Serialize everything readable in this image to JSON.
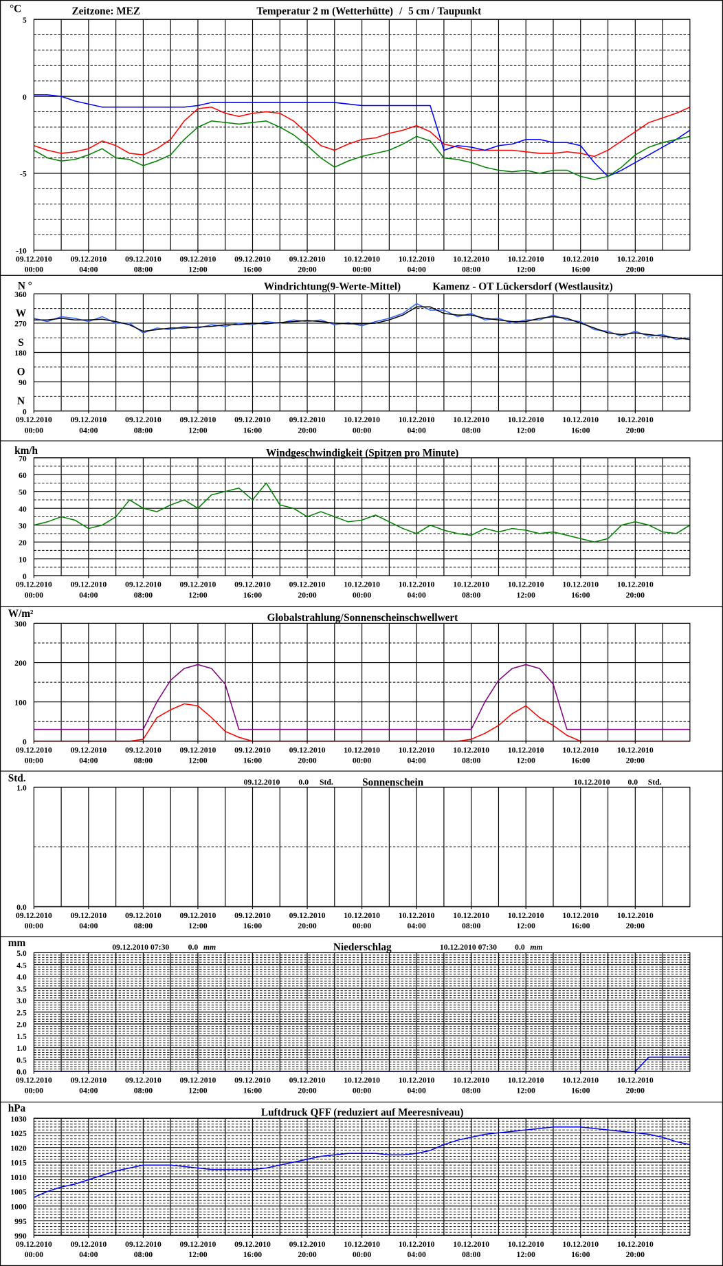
{
  "time_axis": {
    "xlim": [
      0,
      48
    ],
    "x": [
      0,
      1,
      2,
      3,
      4,
      5,
      6,
      7,
      8,
      9,
      10,
      11,
      12,
      13,
      14,
      15,
      16,
      17,
      18,
      19,
      20,
      21,
      22,
      23,
      24,
      25,
      26,
      27,
      28,
      29,
      30,
      31,
      32,
      33,
      34,
      35,
      36,
      37,
      38,
      39,
      40,
      41,
      42,
      43,
      44,
      45,
      46,
      47,
      48
    ],
    "xticks": [
      {
        "value": 0,
        "label": [
          "09.12.2010",
          "00:00"
        ]
      },
      {
        "value": 4,
        "label": [
          "09.12.2010",
          "04:00"
        ]
      },
      {
        "value": 8,
        "label": [
          "09.12.2010",
          "08:00"
        ]
      },
      {
        "value": 12,
        "label": [
          "09.12.2010",
          "12:00"
        ]
      },
      {
        "value": 16,
        "label": [
          "09.12.2010",
          "16:00"
        ]
      },
      {
        "value": 20,
        "label": [
          "09.12.2010",
          "20:00"
        ]
      },
      {
        "value": 24,
        "label": [
          "10.12.2010",
          "00:00"
        ]
      },
      {
        "value": 28,
        "label": [
          "10.12.2010",
          "04:00"
        ]
      },
      {
        "value": 32,
        "label": [
          "10.12.2010",
          "08:00"
        ]
      },
      {
        "value": 36,
        "label": [
          "10.12.2010",
          "12:00"
        ]
      },
      {
        "value": 40,
        "label": [
          "10.12.2010",
          "16:00"
        ]
      },
      {
        "value": 44,
        "label": [
          "10.12.2010",
          "20:00"
        ]
      }
    ],
    "xgrid": [
      2,
      4,
      6,
      8,
      10,
      12,
      14,
      16,
      18,
      20,
      22,
      24,
      26,
      28,
      30,
      32,
      34,
      36,
      38,
      40,
      42,
      44,
      46
    ]
  },
  "chart_data": [
    {
      "type": "line",
      "y_label": "°C",
      "annotations": [
        "Zeitzone: MEZ",
        "/",
        "/"
      ],
      "ylim": [
        -10,
        5
      ],
      "yticks": [
        -10,
        -5,
        0,
        5
      ],
      "yminorticks": [
        -9,
        -8,
        -7,
        -6,
        -4,
        -3,
        -2,
        -1,
        1,
        2,
        3,
        4
      ],
      "grid": true,
      "series": [
        {
          "name": "Temperatur 2 m (Wetterhütte)",
          "color": "#ff0000",
          "values": [
            -3.2,
            -3.5,
            -3.7,
            -3.6,
            -3.4,
            -2.9,
            -3.2,
            -3.7,
            -3.8,
            -3.4,
            -2.8,
            -1.6,
            -0.8,
            -0.7,
            -1.1,
            -1.3,
            -1.1,
            -1.0,
            -1.1,
            -1.6,
            -2.4,
            -3.2,
            -3.5,
            -3.1,
            -2.8,
            -2.7,
            -2.4,
            -2.2,
            -1.9,
            -2.3,
            -3.1,
            -3.3,
            -3.5,
            -3.5,
            -3.5,
            -3.5,
            -3.6,
            -3.7,
            -3.7,
            -3.6,
            -3.7,
            -3.9,
            -3.5,
            -2.9,
            -2.3,
            -1.7,
            -1.4,
            -1.1,
            -0.7
          ]
        },
        {
          "name": "5 cm",
          "color": "#0000ff",
          "values": [
            0.1,
            0.1,
            0.0,
            -0.3,
            -0.5,
            -0.7,
            -0.7,
            -0.7,
            -0.7,
            -0.7,
            -0.7,
            -0.7,
            -0.6,
            -0.4,
            -0.4,
            -0.4,
            -0.4,
            -0.4,
            -0.4,
            -0.4,
            -0.4,
            -0.4,
            -0.4,
            -0.5,
            -0.6,
            -0.6,
            -0.6,
            -0.6,
            -0.6,
            -0.6,
            -3.5,
            -3.2,
            -3.3,
            -3.5,
            -3.2,
            -3.1,
            -2.8,
            -2.8,
            -3.0,
            -3.0,
            -3.2,
            -4.3,
            -5.2,
            -4.8,
            -4.3,
            -3.8,
            -3.3,
            -2.8,
            -2.2
          ]
        },
        {
          "name": "Taupunkt",
          "color": "#008000",
          "values": [
            -3.5,
            -4.0,
            -4.2,
            -4.1,
            -3.8,
            -3.4,
            -4.0,
            -4.1,
            -4.5,
            -4.2,
            -3.8,
            -2.8,
            -2.0,
            -1.6,
            -1.7,
            -1.8,
            -1.7,
            -1.6,
            -2.0,
            -2.5,
            -3.2,
            -4.0,
            -4.6,
            -4.2,
            -3.9,
            -3.7,
            -3.5,
            -3.1,
            -2.6,
            -2.9,
            -4.0,
            -4.1,
            -4.3,
            -4.6,
            -4.8,
            -4.9,
            -4.8,
            -5.0,
            -4.8,
            -4.8,
            -5.2,
            -5.4,
            -5.2,
            -4.6,
            -3.8,
            -3.3,
            -3.0,
            -2.8,
            -2.6
          ]
        }
      ]
    },
    {
      "type": "line",
      "y_label": "N °",
      "annotations": [
        "Kamenz - OT Lückersdorf (Westlausitz)"
      ],
      "ylim": [
        0,
        360
      ],
      "yticks": [
        0,
        90,
        180,
        270,
        360
      ],
      "yminorticks": [
        45,
        135,
        225,
        315
      ],
      "grid": true,
      "direction_labels": [
        {
          "value": 0,
          "label": "N"
        },
        {
          "value": 90,
          "label": "O"
        },
        {
          "value": 180,
          "label": "S"
        },
        {
          "value": 270,
          "label": "W"
        }
      ],
      "series": [
        {
          "name": "Windrichtung",
          "color": "#3366ff",
          "values": [
            285,
            275,
            290,
            285,
            275,
            290,
            270,
            270,
            240,
            255,
            250,
            260,
            255,
            265,
            260,
            270,
            265,
            275,
            270,
            280,
            275,
            280,
            265,
            272,
            262,
            275,
            285,
            300,
            330,
            310,
            310,
            290,
            300,
            280,
            285,
            270,
            280,
            280,
            295,
            280,
            275,
            250,
            245,
            230,
            245,
            230,
            235,
            220,
            225
          ]
        },
        {
          "name": "(9-Werte-Mittel)",
          "color": "#000000",
          "values": [
            280,
            280,
            285,
            280,
            280,
            282,
            275,
            265,
            245,
            250,
            255,
            255,
            258,
            260,
            265,
            265,
            270,
            268,
            272,
            275,
            278,
            275,
            270,
            268,
            268,
            270,
            280,
            295,
            320,
            320,
            300,
            295,
            295,
            285,
            280,
            275,
            275,
            285,
            290,
            285,
            270,
            255,
            240,
            235,
            240,
            235,
            230,
            225,
            220
          ]
        }
      ]
    },
    {
      "type": "line",
      "y_label": "km/h",
      "title": "Windgeschwindigkeit (Spitzen pro Minute)",
      "ylim": [
        0,
        70
      ],
      "yticks": [
        0,
        10,
        20,
        30,
        40,
        50,
        60,
        70
      ],
      "yminorticks": [
        5,
        15,
        25,
        35,
        45,
        55,
        65
      ],
      "grid": true,
      "series": [
        {
          "color": "#008000",
          "values": [
            30,
            32,
            35,
            33,
            28,
            30,
            35,
            45,
            40,
            38,
            42,
            45,
            40,
            48,
            50,
            52,
            45,
            55,
            42,
            40,
            35,
            38,
            35,
            32,
            33,
            36,
            32,
            28,
            25,
            30,
            27,
            25,
            24,
            28,
            26,
            28,
            27,
            25,
            26,
            24,
            22,
            20,
            22,
            30,
            32,
            30,
            26,
            25,
            30
          ]
        }
      ]
    },
    {
      "type": "line",
      "y_label": "W/m²",
      "ylim": [
        0,
        300
      ],
      "yticks": [
        0,
        100,
        200,
        300
      ],
      "yminorticks": [
        50,
        150,
        250
      ],
      "grid": true,
      "series": [
        {
          "name": "Globalstrahlung/",
          "color": "#ff0000",
          "values": [
            0,
            0,
            0,
            0,
            0,
            0,
            0,
            0,
            5,
            60,
            80,
            95,
            90,
            60,
            25,
            10,
            0,
            0,
            0,
            0,
            0,
            0,
            0,
            0,
            0,
            0,
            0,
            0,
            0,
            0,
            0,
            0,
            5,
            20,
            40,
            70,
            90,
            60,
            40,
            15,
            0,
            0,
            0,
            0,
            0,
            0,
            0,
            0,
            0
          ]
        },
        {
          "name": "Sonnenscheinschwellwert",
          "color": "#800080",
          "values": [
            30,
            30,
            30,
            30,
            30,
            30,
            30,
            30,
            30,
            100,
            155,
            185,
            195,
            185,
            145,
            30,
            30,
            30,
            30,
            30,
            30,
            30,
            30,
            30,
            30,
            30,
            30,
            30,
            30,
            30,
            30,
            30,
            30,
            100,
            155,
            185,
            195,
            185,
            145,
            30,
            30,
            30,
            30,
            30,
            30,
            30,
            30,
            30,
            30
          ]
        }
      ]
    },
    {
      "type": "line",
      "y_label": "Std.",
      "title": "Sonnenschein",
      "annotations": [
        "09.12.2010",
        "0.0",
        "Std.",
        "10.12.2010",
        "0.0",
        "Std."
      ],
      "ylim": [
        0,
        1
      ],
      "yticks": [
        {
          "value": 0,
          "label": "0.0"
        },
        {
          "value": 1,
          "label": "1.0"
        }
      ],
      "yminorticks": [
        0.5
      ],
      "grid": true,
      "series": [
        {
          "color": "#ff0000",
          "values": [
            0,
            0,
            0,
            0,
            0,
            0,
            0,
            0,
            0,
            0,
            0,
            0,
            0,
            0,
            0,
            0,
            0,
            0,
            0,
            0,
            0,
            0,
            0,
            0,
            0,
            0,
            0,
            0,
            0,
            0,
            0,
            0,
            0,
            0,
            0,
            0,
            0,
            0,
            0,
            0,
            0,
            0,
            0,
            0,
            0,
            0,
            0,
            0,
            0
          ]
        }
      ]
    },
    {
      "type": "line",
      "y_label": "mm",
      "title": "Niederschlag",
      "annotations": [
        "09.12.2010 07:30",
        "0.0",
        "mm",
        "10.12.2010 07:30",
        "0.0",
        "mm"
      ],
      "ylim": [
        0,
        5
      ],
      "yticks": [
        {
          "value": 0,
          "label": "0.0"
        },
        {
          "value": 0.5,
          "label": "0.5"
        },
        {
          "value": 1,
          "label": "1.0"
        },
        {
          "value": 1.5,
          "label": "1.5"
        },
        {
          "value": 2,
          "label": "2.0"
        },
        {
          "value": 2.5,
          "label": "2.5"
        },
        {
          "value": 3,
          "label": "3.0"
        },
        {
          "value": 3.5,
          "label": "3.5"
        },
        {
          "value": 4,
          "label": "4.0"
        },
        {
          "value": 4.5,
          "label": "4.5"
        },
        {
          "value": 5,
          "label": "5.0"
        }
      ],
      "yminorticks": [
        0.1,
        0.2,
        0.3,
        0.4,
        0.6,
        0.7,
        0.8,
        0.9,
        1.1,
        1.2,
        1.3,
        1.4,
        1.6,
        1.7,
        1.8,
        1.9,
        2.1,
        2.2,
        2.3,
        2.4,
        2.6,
        2.7,
        2.8,
        2.9,
        3.1,
        3.2,
        3.3,
        3.4,
        3.6,
        3.7,
        3.8,
        3.9,
        4.1,
        4.2,
        4.3,
        4.4,
        4.6,
        4.7,
        4.8,
        4.9
      ],
      "grid": true,
      "series": [
        {
          "color": "#0000ff",
          "values": [
            0,
            0,
            0,
            0,
            0,
            0,
            0,
            0,
            0,
            0,
            0,
            0,
            0,
            0,
            0,
            0,
            0,
            0,
            0,
            0,
            0,
            0,
            0,
            0,
            0,
            0,
            0,
            0,
            0,
            0,
            0,
            0,
            0,
            0,
            0,
            0,
            0,
            0,
            0,
            0,
            0,
            0,
            0,
            0,
            0,
            0.6,
            0.6,
            0.6,
            0.6
          ]
        }
      ]
    },
    {
      "type": "line",
      "y_label": "hPa",
      "title": "Luftdruck QFF (reduziert auf Meeresniveau)",
      "ylim": [
        990,
        1030
      ],
      "yticks": [
        990,
        995,
        1000,
        1005,
        1010,
        1015,
        1020,
        1025,
        1030
      ],
      "yminorticks": [
        991,
        992,
        993,
        994,
        996,
        997,
        998,
        999,
        1001,
        1002,
        1003,
        1004,
        1006,
        1007,
        1008,
        1009,
        1011,
        1012,
        1013,
        1014,
        1016,
        1017,
        1018,
        1019,
        1021,
        1022,
        1023,
        1024,
        1026,
        1027,
        1028,
        1029
      ],
      "grid": true,
      "series": [
        {
          "color": "#0000ff",
          "values": [
            1003,
            1005,
            1006.5,
            1007.5,
            1009,
            1010.5,
            1012,
            1013,
            1014,
            1014,
            1014,
            1013.5,
            1013,
            1012.5,
            1012.5,
            1012.5,
            1012.5,
            1013,
            1014,
            1015,
            1016,
            1017,
            1017.5,
            1018,
            1018,
            1018,
            1017.5,
            1017.5,
            1018,
            1019,
            1021,
            1022.5,
            1023.5,
            1024.5,
            1025,
            1025.5,
            1026,
            1026.5,
            1027,
            1027,
            1027,
            1026.5,
            1026,
            1025.5,
            1025,
            1024.5,
            1023.5,
            1022,
            1021
          ]
        }
      ]
    }
  ]
}
